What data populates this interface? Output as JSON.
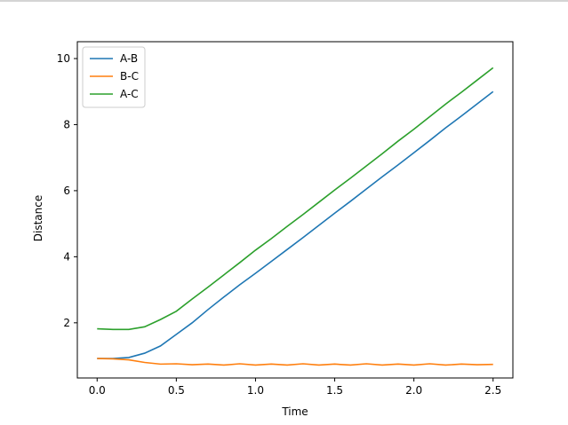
{
  "chart_data": {
    "type": "line",
    "xlabel": "Time",
    "ylabel": "Distance",
    "x": [
      0,
      0.1,
      0.2,
      0.3,
      0.4,
      0.5,
      0.6,
      0.7,
      0.8,
      0.9,
      1.0,
      1.1,
      1.2,
      1.3,
      1.4,
      1.5,
      1.6,
      1.7,
      1.8,
      1.9,
      2.0,
      2.1,
      2.2,
      2.3,
      2.4,
      2.5
    ],
    "series": [
      {
        "name": "A-B",
        "color": "#1f77b4",
        "values": [
          0.92,
          0.92,
          0.95,
          1.08,
          1.3,
          1.65,
          2.0,
          2.4,
          2.78,
          3.15,
          3.5,
          3.86,
          4.22,
          4.58,
          4.95,
          5.32,
          5.68,
          6.05,
          6.42,
          6.78,
          7.15,
          7.52,
          7.9,
          8.26,
          8.63,
          9.0
        ]
      },
      {
        "name": "B-C",
        "color": "#ff7f0e",
        "values": [
          0.92,
          0.91,
          0.88,
          0.8,
          0.75,
          0.76,
          0.73,
          0.75,
          0.72,
          0.76,
          0.72,
          0.75,
          0.72,
          0.76,
          0.72,
          0.75,
          0.72,
          0.76,
          0.72,
          0.75,
          0.72,
          0.76,
          0.72,
          0.75,
          0.73,
          0.74
        ]
      },
      {
        "name": "A-C",
        "color": "#2ca02c",
        "values": [
          1.82,
          1.8,
          1.8,
          1.88,
          2.1,
          2.35,
          2.72,
          3.08,
          3.45,
          3.82,
          4.2,
          4.55,
          4.92,
          5.28,
          5.65,
          6.02,
          6.38,
          6.75,
          7.12,
          7.5,
          7.86,
          8.24,
          8.62,
          8.98,
          9.35,
          9.72
        ]
      }
    ],
    "xlim": [
      -0.125,
      2.625
    ],
    "xticks": [
      {
        "value": 0,
        "label": "0.0"
      },
      0.5,
      {
        "value": 1,
        "label": "1.0"
      },
      1.5,
      {
        "value": 2,
        "label": "2.0"
      },
      2.5
    ],
    "ylim": [
      0.33,
      10.51
    ],
    "yticks": [
      2,
      4,
      6,
      8,
      10
    ],
    "legend": "upper-left",
    "grid": false
  }
}
